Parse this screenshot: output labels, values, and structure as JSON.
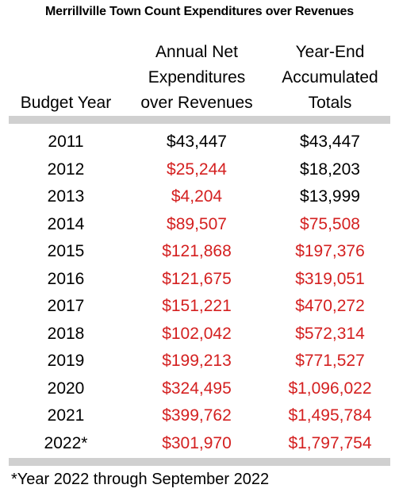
{
  "title": "Merrillville Town Count Expenditures over Revenues",
  "headers": {
    "year": [
      "Budget Year"
    ],
    "net": [
      "Annual Net",
      "Expenditures",
      "over Revenues"
    ],
    "total": [
      "Year-End",
      "Accumulated",
      "Totals"
    ]
  },
  "colors": {
    "positive": "#000000",
    "negative": "#d42020",
    "bar": "#d0d0d0"
  },
  "rows": [
    {
      "year": "2011",
      "net": "$43,447",
      "total": "$43,447",
      "net_red": false,
      "total_red": false
    },
    {
      "year": "2012",
      "net": "$25,244",
      "total": "$18,203",
      "net_red": true,
      "total_red": false
    },
    {
      "year": "2013",
      "net": "$4,204",
      "total": "$13,999",
      "net_red": true,
      "total_red": false
    },
    {
      "year": "2014",
      "net": "$89,507",
      "total": "$75,508",
      "net_red": true,
      "total_red": true
    },
    {
      "year": "2015",
      "net": "$121,868",
      "total": "$197,376",
      "net_red": true,
      "total_red": true
    },
    {
      "year": "2016",
      "net": "$121,675",
      "total": "$319,051",
      "net_red": true,
      "total_red": true
    },
    {
      "year": "2017",
      "net": "$151,221",
      "total": "$470,272",
      "net_red": true,
      "total_red": true
    },
    {
      "year": "2018",
      "net": "$102,042",
      "total": "$572,314",
      "net_red": true,
      "total_red": true
    },
    {
      "year": "2019",
      "net": "$199,213",
      "total": "$771,527",
      "net_red": true,
      "total_red": true
    },
    {
      "year": "2020",
      "net": "$324,495",
      "total": "$1,096,022",
      "net_red": true,
      "total_red": true
    },
    {
      "year": "2021",
      "net": "$399,762",
      "total": "$1,495,784",
      "net_red": true,
      "total_red": true
    },
    {
      "year": "2022*",
      "net": "$301,970",
      "total": "$1,797,754",
      "net_red": true,
      "total_red": true
    }
  ],
  "footnote": "*Year 2022 through September 2022"
}
